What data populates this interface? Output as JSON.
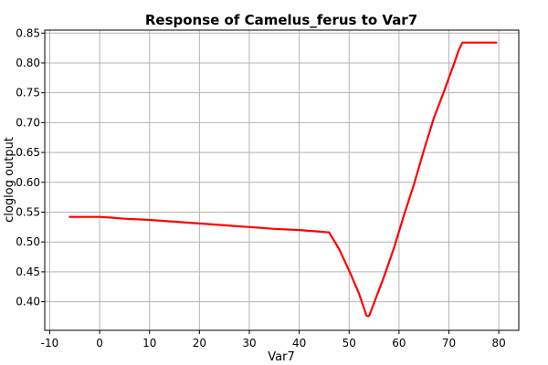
{
  "chart_data": {
    "type": "line",
    "title": "Response of Camelus_ferus to Var7",
    "xlabel": "Var7",
    "ylabel": "cloglog output",
    "xlim": [
      -11,
      84
    ],
    "ylim": [
      0.352,
      0.855
    ],
    "xticks": [
      -10,
      0,
      10,
      20,
      30,
      40,
      50,
      60,
      70,
      80
    ],
    "yticks": [
      0.4,
      0.45,
      0.5,
      0.55,
      0.6,
      0.65,
      0.7,
      0.75,
      0.8,
      0.85
    ],
    "grid": true,
    "series": [
      {
        "color": "#ff0000",
        "x": [
          -6,
          0,
          2,
          5,
          10,
          15,
          20,
          25,
          30,
          35,
          40,
          43,
          46,
          48,
          50,
          52,
          53.5,
          54,
          55,
          57,
          59,
          61,
          63,
          65,
          67,
          69,
          70,
          71,
          72,
          72.7,
          75,
          79.5
        ],
        "y": [
          0.542,
          0.542,
          0.541,
          0.539,
          0.537,
          0.534,
          0.531,
          0.528,
          0.525,
          0.522,
          0.52,
          0.518,
          0.516,
          0.488,
          0.452,
          0.413,
          0.376,
          0.376,
          0.398,
          0.442,
          0.49,
          0.545,
          0.597,
          0.654,
          0.708,
          0.752,
          0.775,
          0.798,
          0.822,
          0.834,
          0.834,
          0.834
        ]
      }
    ]
  }
}
